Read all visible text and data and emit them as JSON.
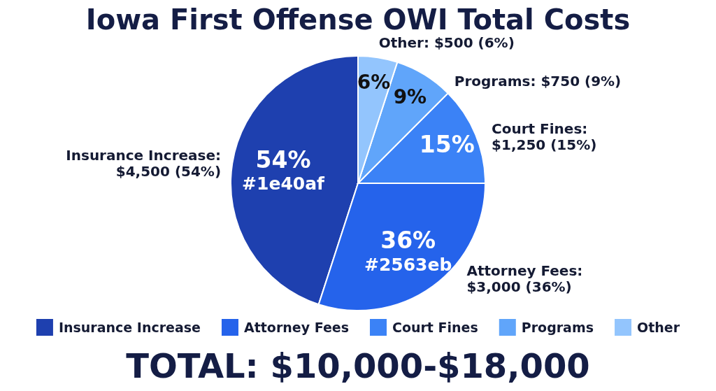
{
  "chart_data": {
    "type": "pie",
    "title": "Iowa First Offense OWI Total Costs",
    "categories": [
      "Insurance Increase",
      "Attorney Fees",
      "Court Fines",
      "Programs",
      "Other"
    ],
    "values": [
      4500,
      3000,
      1250,
      750,
      500
    ],
    "colors": [
      "#1e40af",
      "#2563eb",
      "#3b82f6",
      "#60a5fa",
      "#93c5fd"
    ],
    "value_labels": [
      "Insurance Increase:\n$4,500 (54%)",
      "Attorney Fees:\n$3,000 (36%)",
      "Court Fines:\n$1,250 (15%)",
      "Programs: $750 (9%)",
      "Other: $500 (6%)"
    ],
    "annotations": [
      {
        "text": "54%\n#1e40af",
        "x": "Insurance Increase"
      },
      {
        "text": "36%\n#2563eb",
        "x": "Attorney Fees"
      },
      {
        "text": "15%",
        "x": "Court Fines"
      },
      {
        "text": "9%",
        "x": "Programs"
      },
      {
        "text": "6%",
        "x": "Other"
      },
      "TOTAL: $10,000-$18,000"
    ],
    "legend": "bottom"
  }
}
